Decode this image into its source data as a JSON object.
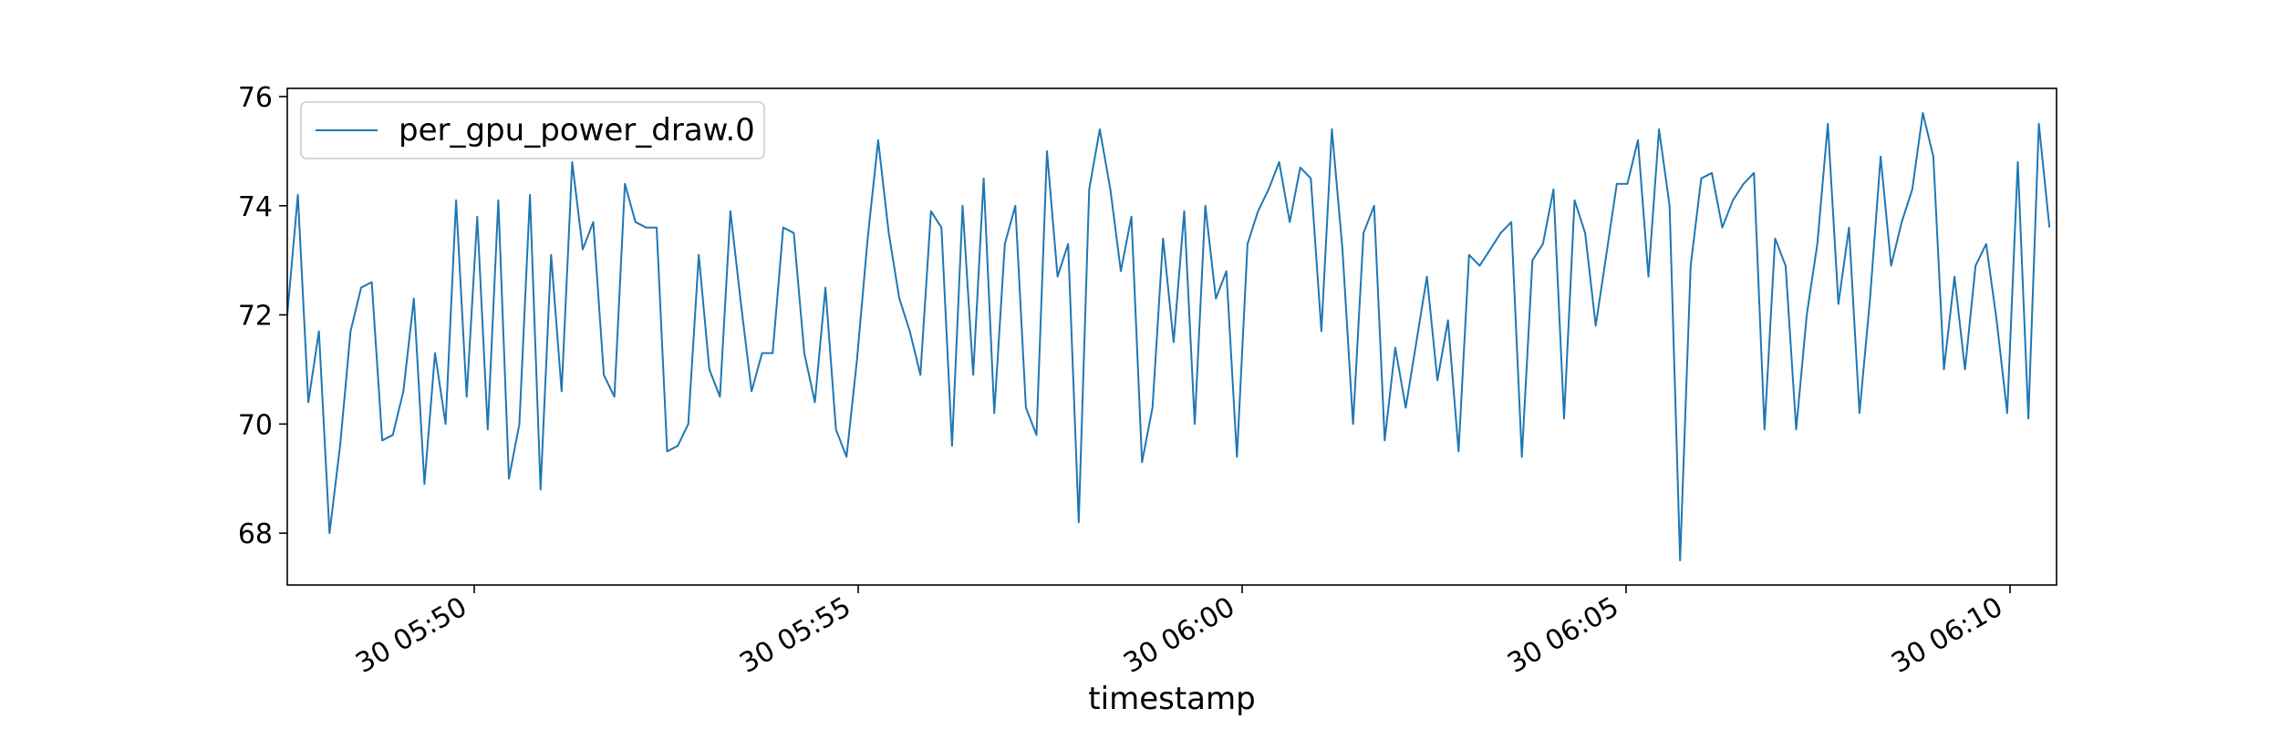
{
  "chart_data": {
    "type": "line",
    "title": "",
    "xlabel": "timestamp",
    "ylabel": "",
    "x_tick_labels": [
      "30 05:50",
      "30 05:55",
      "30 06:00",
      "30 06:05",
      "30 06:10"
    ],
    "y_tick_labels": [
      "68",
      "70",
      "72",
      "74",
      "76"
    ],
    "y_ticks": [
      68,
      70,
      72,
      74,
      76
    ],
    "ylim": [
      67.05,
      76.15
    ],
    "legend_location": "upper-left",
    "grid": false,
    "line_color": "#1f77b4",
    "series": [
      {
        "name": "per_gpu_power_draw.0",
        "values": [
          72.0,
          74.2,
          70.4,
          71.7,
          68.0,
          69.6,
          71.7,
          72.5,
          72.6,
          69.7,
          69.8,
          70.6,
          72.3,
          68.9,
          71.3,
          70.0,
          74.1,
          70.5,
          73.8,
          69.9,
          74.1,
          69.0,
          70.0,
          74.2,
          68.8,
          73.1,
          70.6,
          74.8,
          73.2,
          73.7,
          70.9,
          70.5,
          74.4,
          73.7,
          73.6,
          73.6,
          69.5,
          69.6,
          70.0,
          73.1,
          71.0,
          70.5,
          73.9,
          72.2,
          70.6,
          71.3,
          71.3,
          73.6,
          73.5,
          71.3,
          70.4,
          72.5,
          69.9,
          69.4,
          71.2,
          73.4,
          75.2,
          73.5,
          72.3,
          71.7,
          70.9,
          73.9,
          73.6,
          69.6,
          74.0,
          70.9,
          74.5,
          70.2,
          73.3,
          74.0,
          70.3,
          69.8,
          75.0,
          72.7,
          73.3,
          68.2,
          74.3,
          75.4,
          74.3,
          72.8,
          73.8,
          69.3,
          70.3,
          73.4,
          71.5,
          73.9,
          70.0,
          74.0,
          72.3,
          72.8,
          69.4,
          73.3,
          73.9,
          74.3,
          74.8,
          73.7,
          74.7,
          74.5,
          71.7,
          75.4,
          73.2,
          70.0,
          73.5,
          74.0,
          69.7,
          71.4,
          70.3,
          71.5,
          72.7,
          70.8,
          71.9,
          69.5,
          73.1,
          72.9,
          73.2,
          73.5,
          73.7,
          69.4,
          73.0,
          73.3,
          74.3,
          70.1,
          74.1,
          73.5,
          71.8,
          73.1,
          74.4,
          74.4,
          75.2,
          72.7,
          75.4,
          74.0,
          67.5,
          72.9,
          74.5,
          74.6,
          73.6,
          74.1,
          74.4,
          74.6,
          69.9,
          73.4,
          72.9,
          69.9,
          72.0,
          73.3,
          75.5,
          72.2,
          73.6,
          70.2,
          72.3,
          74.9,
          72.9,
          73.7,
          74.3,
          75.7,
          74.9,
          71.0,
          72.7,
          71.0,
          72.9,
          73.3,
          71.9,
          70.2,
          74.8,
          70.1,
          75.5,
          73.6
        ]
      }
    ]
  }
}
